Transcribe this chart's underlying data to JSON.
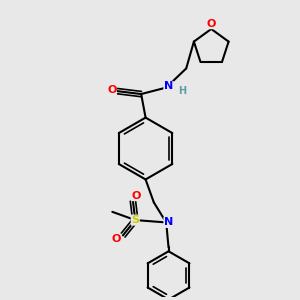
{
  "background_color": "#e8e8e8",
  "bond_color": "#000000",
  "atom_colors": {
    "O": "#ff0000",
    "N": "#0000ff",
    "S": "#cccc00",
    "H": "#5f9ea0",
    "C": "#000000"
  },
  "figsize": [
    3.0,
    3.0
  ],
  "dpi": 100,
  "xlim": [
    0,
    10
  ],
  "ylim": [
    0,
    10
  ]
}
